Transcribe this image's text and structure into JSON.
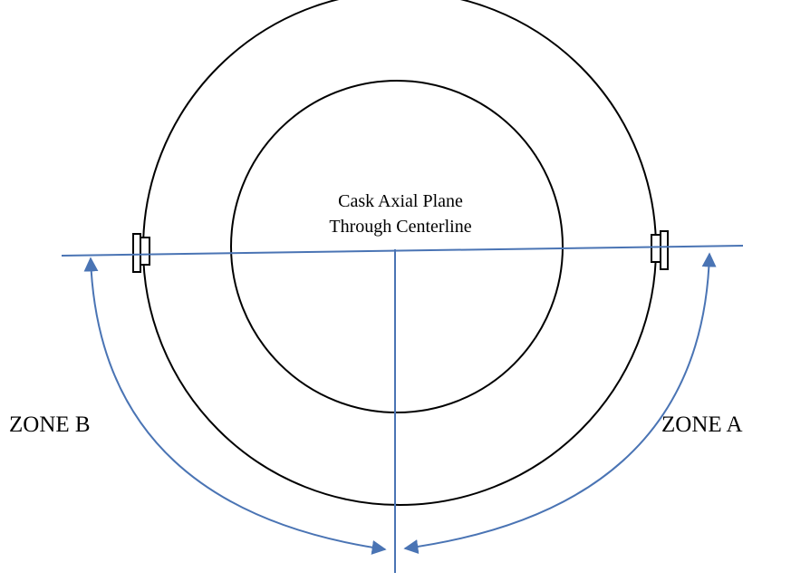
{
  "labels": {
    "plane": [
      "Cask Axial Plane",
      "Through Centerline"
    ],
    "zone_b": "ZONE B",
    "zone_a": "ZONE A"
  }
}
